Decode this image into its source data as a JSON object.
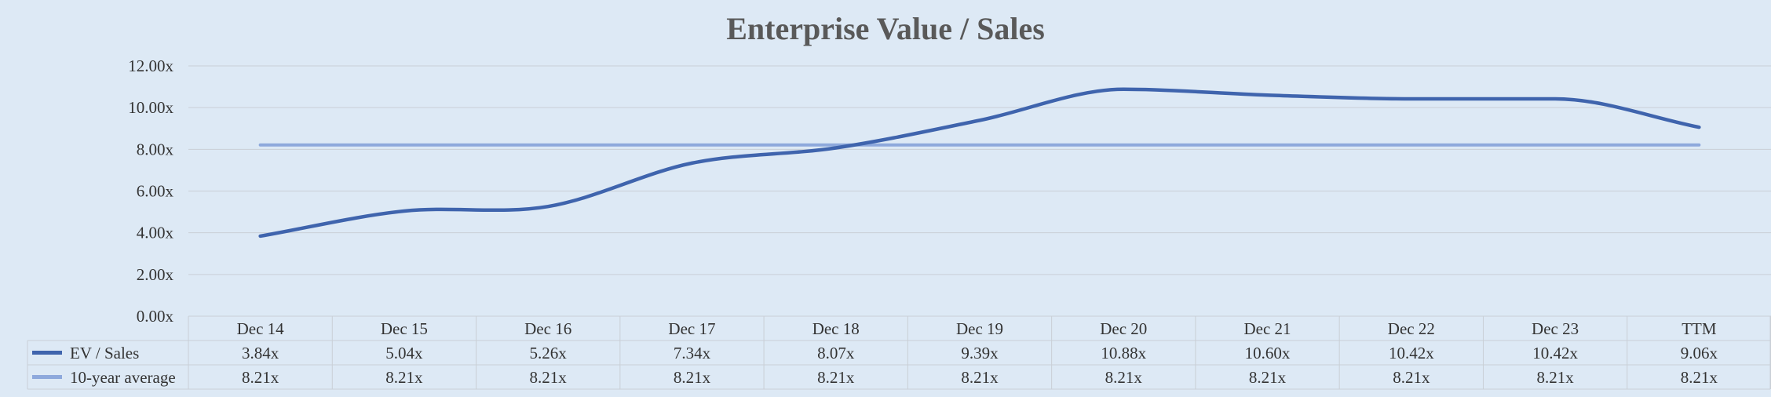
{
  "chart_data": {
    "type": "line",
    "title": "Enterprise Value / Sales",
    "categories": [
      "Dec 14",
      "Dec 15",
      "Dec 16",
      "Dec 17",
      "Dec 18",
      "Dec 19",
      "Dec 20",
      "Dec 21",
      "Dec 22",
      "Dec 23",
      "TTM"
    ],
    "series": [
      {
        "name": "EV / Sales",
        "color": "#3f64ad",
        "values": [
          3.84,
          5.04,
          5.26,
          7.34,
          8.07,
          9.39,
          10.88,
          10.6,
          10.42,
          10.42,
          9.06
        ],
        "labels": [
          "3.84x",
          "5.04x",
          "5.26x",
          "7.34x",
          "8.07x",
          "9.39x",
          "10.88x",
          "10.60x",
          "10.42x",
          "10.42x",
          "9.06x"
        ]
      },
      {
        "name": "10-year average",
        "color": "#8ea9dc",
        "values": [
          8.21,
          8.21,
          8.21,
          8.21,
          8.21,
          8.21,
          8.21,
          8.21,
          8.21,
          8.21,
          8.21
        ],
        "labels": [
          "8.21x",
          "8.21x",
          "8.21x",
          "8.21x",
          "8.21x",
          "8.21x",
          "8.21x",
          "8.21x",
          "8.21x",
          "8.21x",
          "8.21x"
        ]
      }
    ],
    "y_ticks": [
      "0.00x",
      "2.00x",
      "4.00x",
      "6.00x",
      "8.00x",
      "10.00x",
      "12.00x"
    ],
    "ylim": [
      0,
      12
    ],
    "grid": true,
    "data_table": true,
    "colors": {
      "background": "#dde9f5",
      "gridline": "#c9cfd6",
      "title": "#595959"
    }
  }
}
